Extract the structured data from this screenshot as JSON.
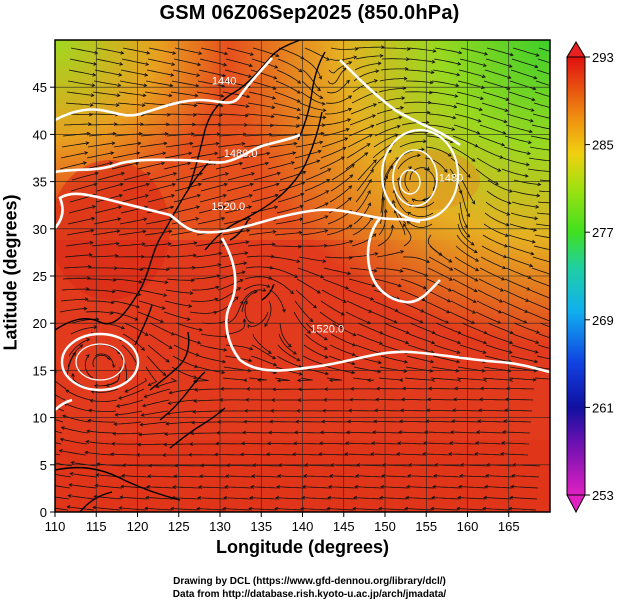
{
  "title": "GSM 06Z06Sep2025 (850.0hPa)",
  "xaxis": {
    "label": "Longitude (degrees)",
    "range": [
      110,
      170
    ],
    "ticks": [
      110,
      115,
      120,
      125,
      130,
      135,
      140,
      145,
      150,
      155,
      160,
      165
    ]
  },
  "yaxis": {
    "label": "Latitude  (degrees)",
    "range": [
      0,
      50
    ],
    "ticks": [
      0,
      5,
      10,
      15,
      20,
      25,
      30,
      35,
      40,
      45
    ]
  },
  "colorbar": {
    "range": [
      253,
      293
    ],
    "ticks": [
      253,
      261,
      269,
      277,
      285,
      293
    ]
  },
  "contour_labels": [
    {
      "text": "1440",
      "lon": 130.5,
      "lat": 45.3
    },
    {
      "text": "1480.0",
      "lon": 132.5,
      "lat": 37.6
    },
    {
      "text": "1520.0",
      "lon": 131.0,
      "lat": 32.0
    },
    {
      "text": "1520.0",
      "lon": 143.0,
      "lat": 19.0
    },
    {
      "text": "1480",
      "lon": 158.0,
      "lat": 35.0
    }
  ],
  "credits": {
    "line1": "Drawing by DCL (https://www.gfd-dennou.org/library/dcl/)",
    "line2": "Data from http://database.rish.kyoto-u.ac.jp/arch/jmadata/"
  }
}
